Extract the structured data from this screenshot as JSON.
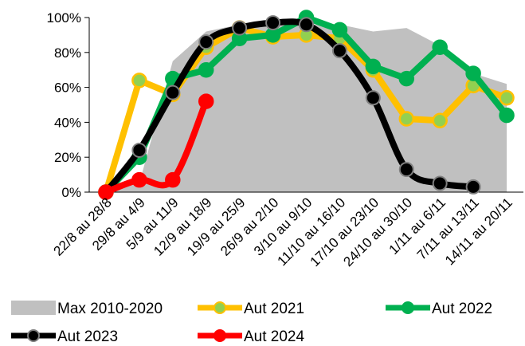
{
  "chart_data": {
    "type": "line",
    "categories": [
      "22/8 au 28/8",
      "29/8 au 4/9",
      "5/9 au 11/9",
      "12/9 au 18/9",
      "19/9 au 25/9",
      "26/9 au 2/10",
      "3/10 au 9/10",
      "11/10 au 16/10",
      "17/10 au 23/10",
      "24/10 au 30/10",
      "1/11 au 6/11",
      "7/11 au 13/11",
      "14/11 au 20/11"
    ],
    "ylim": [
      0,
      1
    ],
    "yticks": [
      0,
      0.2,
      0.4,
      0.6,
      0.8,
      1.0
    ],
    "ytick_labels": [
      "0%",
      "20%",
      "40%",
      "60%",
      "80%",
      "100%"
    ],
    "area": {
      "name": "Max 2010-2020",
      "color": "#c0c0c0",
      "values": [
        0,
        0.05,
        0.75,
        0.92,
        0.96,
        0.97,
        0.96,
        0.96,
        0.92,
        0.94,
        0.84,
        0.68,
        0.62
      ]
    },
    "series": [
      {
        "name": "Aut 2021",
        "color": "#ffc000",
        "marker_fill": "#92d050",
        "values": [
          0,
          0.64,
          0.56,
          0.83,
          0.94,
          0.89,
          0.9,
          0.88,
          0.7,
          0.42,
          0.41,
          0.61,
          0.54
        ]
      },
      {
        "name": "Aut 2022",
        "color": "#00b050",
        "marker_fill": "#00b050",
        "values": [
          0,
          0.2,
          0.65,
          0.7,
          0.88,
          0.9,
          1.0,
          0.93,
          0.72,
          0.65,
          0.83,
          0.68,
          0.44
        ]
      },
      {
        "name": "Aut 2023",
        "color": "#000000",
        "marker_fill": "#000000",
        "values": [
          0,
          0.24,
          0.57,
          0.86,
          0.94,
          0.97,
          0.96,
          0.81,
          0.54,
          0.13,
          0.05,
          0.03,
          null
        ]
      },
      {
        "name": "Aut 2024",
        "color": "#ff0000",
        "marker_fill": "#ff0000",
        "values": [
          0,
          0.07,
          0.07,
          0.52,
          null,
          null,
          null,
          null,
          null,
          null,
          null,
          null,
          null
        ]
      }
    ],
    "legend_position": "bottom",
    "grid": false
  }
}
